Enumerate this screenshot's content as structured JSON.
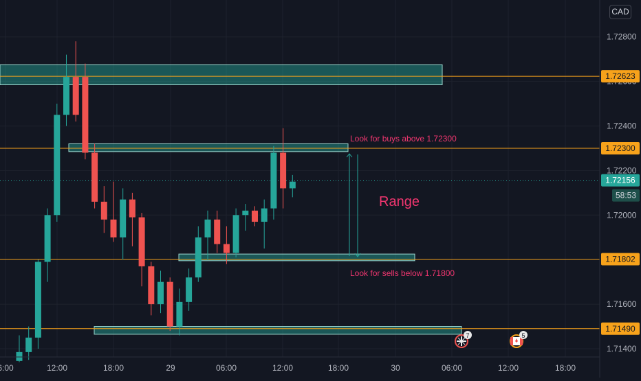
{
  "currency_button": "CAD",
  "price_axis": {
    "ticks": [
      "1.72800",
      "1.72600",
      "1.72400",
      "1.72200",
      "1.72000",
      "1.71600",
      "1.71400"
    ]
  },
  "time_axis": {
    "ticks": [
      "6:00",
      "12:00",
      "18:00",
      "29",
      "06:00",
      "12:00",
      "18:00",
      "30",
      "06:00",
      "12:00",
      "18:00"
    ]
  },
  "levels": [
    {
      "label": "1.72623",
      "kind": "level"
    },
    {
      "label": "1.72300",
      "kind": "level"
    },
    {
      "label": "1.72156",
      "kind": "current"
    },
    {
      "label": "1.71802",
      "kind": "level"
    },
    {
      "label": "1.71490",
      "kind": "level"
    }
  ],
  "countdown": "58:53",
  "annotations": {
    "buy_note": "Look for buys above 1.72300",
    "sell_note": "Look for sells below 1.71800",
    "range_label": "Range"
  },
  "events": [
    {
      "icon": "uk-flag-icon",
      "count": "7"
    },
    {
      "icon": "canada-flag-icon",
      "count": "5"
    }
  ],
  "colors": {
    "background": "#131722",
    "bull": "#26a69a",
    "bear": "#ef5350",
    "level_line": "#f7a21b",
    "zone_fill": "#26a69a",
    "annotation": "#f23670"
  },
  "chart_data": {
    "type": "candlestick",
    "symbol_currency": "CAD",
    "timeframe": "1h",
    "x_axis_ticks": [
      "6:00",
      "12:00",
      "18:00",
      "29",
      "06:00",
      "12:00",
      "18:00",
      "30",
      "06:00",
      "12:00",
      "18:00"
    ],
    "y_axis_ticks": [
      1.728,
      1.726,
      1.724,
      1.722,
      1.72,
      1.716,
      1.714
    ],
    "ylim": [
      1.7136,
      1.7296
    ],
    "candles": [
      {
        "o": 1.71345,
        "h": 1.7146,
        "l": 1.7134,
        "c": 1.71385
      },
      {
        "o": 1.71385,
        "h": 1.715,
        "l": 1.7135,
        "c": 1.7145
      },
      {
        "o": 1.7145,
        "h": 1.718,
        "l": 1.714,
        "c": 1.7179
      },
      {
        "o": 1.7179,
        "h": 1.7203,
        "l": 1.717,
        "c": 1.72
      },
      {
        "o": 1.72,
        "h": 1.725,
        "l": 1.7197,
        "c": 1.7245
      },
      {
        "o": 1.7245,
        "h": 1.7272,
        "l": 1.724,
        "c": 1.7262
      },
      {
        "o": 1.7262,
        "h": 1.7278,
        "l": 1.7242,
        "c": 1.7245
      },
      {
        "o": 1.7262,
        "h": 1.7268,
        "l": 1.7225,
        "c": 1.7228
      },
      {
        "o": 1.7228,
        "h": 1.7232,
        "l": 1.7203,
        "c": 1.7206
      },
      {
        "o": 1.7206,
        "h": 1.7213,
        "l": 1.7192,
        "c": 1.7198
      },
      {
        "o": 1.7198,
        "h": 1.7215,
        "l": 1.7188,
        "c": 1.719
      },
      {
        "o": 1.719,
        "h": 1.7212,
        "l": 1.718,
        "c": 1.7207
      },
      {
        "o": 1.7207,
        "h": 1.721,
        "l": 1.7186,
        "c": 1.7199
      },
      {
        "o": 1.7199,
        "h": 1.7201,
        "l": 1.7168,
        "c": 1.7177
      },
      {
        "o": 1.7177,
        "h": 1.7179,
        "l": 1.7155,
        "c": 1.716
      },
      {
        "o": 1.716,
        "h": 1.7175,
        "l": 1.7156,
        "c": 1.717
      },
      {
        "o": 1.717,
        "h": 1.7172,
        "l": 1.7148,
        "c": 1.715
      },
      {
        "o": 1.715,
        "h": 1.7167,
        "l": 1.7146,
        "c": 1.7161
      },
      {
        "o": 1.7161,
        "h": 1.7176,
        "l": 1.7157,
        "c": 1.7172
      },
      {
        "o": 1.7172,
        "h": 1.7195,
        "l": 1.717,
        "c": 1.719
      },
      {
        "o": 1.719,
        "h": 1.7202,
        "l": 1.718,
        "c": 1.7198
      },
      {
        "o": 1.7198,
        "h": 1.7202,
        "l": 1.7183,
        "c": 1.7187
      },
      {
        "o": 1.7187,
        "h": 1.7195,
        "l": 1.7178,
        "c": 1.7183
      },
      {
        "o": 1.7183,
        "h": 1.7203,
        "l": 1.7181,
        "c": 1.72
      },
      {
        "o": 1.72,
        "h": 1.7205,
        "l": 1.7193,
        "c": 1.7202
      },
      {
        "o": 1.7202,
        "h": 1.7204,
        "l": 1.7195,
        "c": 1.7197
      },
      {
        "o": 1.7197,
        "h": 1.7207,
        "l": 1.7185,
        "c": 1.7203
      },
      {
        "o": 1.7203,
        "h": 1.7231,
        "l": 1.7198,
        "c": 1.7228
      },
      {
        "o": 1.7228,
        "h": 1.7239,
        "l": 1.7203,
        "c": 1.7212
      },
      {
        "o": 1.7212,
        "h": 1.7218,
        "l": 1.7208,
        "c": 1.7215
      }
    ],
    "zones": [
      {
        "top": 1.72675,
        "bottom": 1.72585
      },
      {
        "top": 1.7232,
        "bottom": 1.72285
      },
      {
        "top": 1.71825,
        "bottom": 1.71795
      },
      {
        "top": 1.715,
        "bottom": 1.71465
      }
    ],
    "horizontal_levels": [
      1.72623,
      1.723,
      1.71802,
      1.7149
    ],
    "current_price": 1.72156,
    "range": {
      "top": 1.723,
      "bottom": 1.718
    }
  }
}
